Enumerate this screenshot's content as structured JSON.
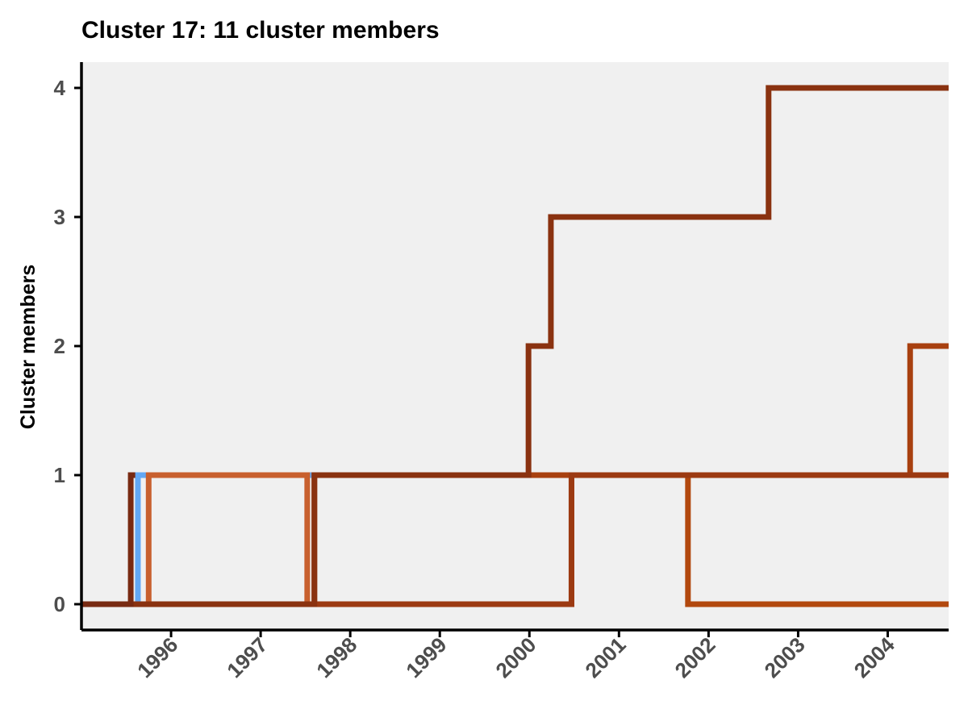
{
  "chart_data": {
    "type": "line",
    "step": true,
    "title": "Cluster 17: 11 cluster members",
    "xlabel": "",
    "ylabel": "Cluster members",
    "xlim": [
      1995.0,
      2004.68
    ],
    "ylim": [
      -0.2,
      4.2
    ],
    "x_ticks": [
      1996,
      1997,
      1998,
      1999,
      2000,
      2001,
      2002,
      2003,
      2004
    ],
    "x_tick_labels": [
      "1996",
      "1997",
      "1998",
      "1999",
      "2000",
      "2001",
      "2002",
      "2003",
      "2004"
    ],
    "y_ticks": [
      0,
      1,
      2,
      3,
      4
    ],
    "y_tick_labels": [
      "0",
      "1",
      "2",
      "3",
      "4"
    ],
    "grid": false,
    "legend": "none",
    "background": "#f0f0f0",
    "series": [
      {
        "color": "#62a8f5",
        "x": [
          1995.0,
          1995.63,
          2001.0
        ],
        "y": [
          0,
          1,
          1
        ]
      },
      {
        "color": "#c8602e",
        "x": [
          1995.0,
          1995.75,
          1997.52,
          1997.6
        ],
        "y": [
          0,
          1,
          0,
          0
        ]
      },
      {
        "color": "#b2480e",
        "x": [
          1995.0,
          2000.47,
          2001.77,
          2004.68
        ],
        "y": [
          0,
          1,
          0,
          0
        ]
      },
      {
        "color": "#a8400f",
        "x": [
          1995.0,
          1997.6,
          2001.77,
          2004.25,
          2004.68
        ],
        "y": [
          0,
          1,
          1,
          2,
          2
        ]
      },
      {
        "color": "#9c3a12",
        "x": [
          1995.0,
          2000.47,
          2004.68
        ],
        "y": [
          0,
          1,
          1
        ]
      },
      {
        "color": "#8a3210",
        "x": [
          1995.0,
          1997.6,
          1999.99,
          2000.24,
          2002.67,
          2004.68
        ],
        "y": [
          0,
          1,
          2,
          3,
          4,
          4
        ]
      },
      {
        "color": "#782a12",
        "x": [
          1995.0,
          1995.55,
          1995.6
        ],
        "y": [
          0,
          1,
          1
        ]
      }
    ]
  }
}
